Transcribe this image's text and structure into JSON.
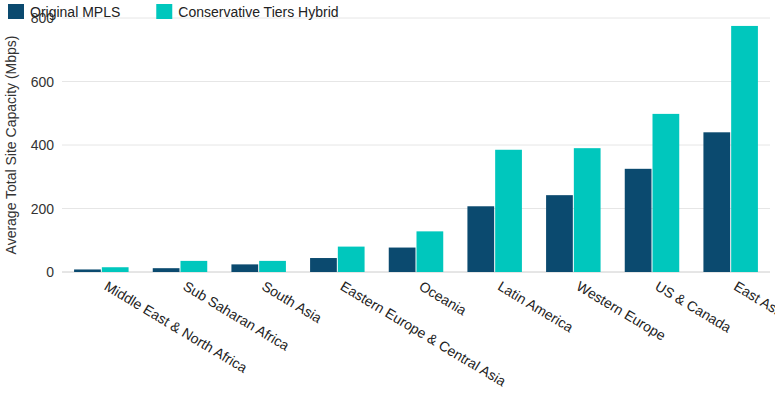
{
  "chart_data": {
    "type": "bar",
    "y_label": "Average Total Site Capacity (Mbps)",
    "categories": [
      "Middle East & North Africa",
      "Sub Saharan Africa",
      "South Asia",
      "Eastern Europe & Central Asia",
      "Oceania",
      "Latin America",
      "Western Europe",
      "US & Canada",
      "East Asia"
    ],
    "series": [
      {
        "name": "Original MPLS",
        "color": "#0b4a6f",
        "values": [
          8,
          12,
          24,
          44,
          77,
          207,
          242,
          325,
          440
        ]
      },
      {
        "name": "Conservative Tiers Hybrid",
        "color": "#00c7bd",
        "values": [
          15,
          35,
          35,
          80,
          128,
          385,
          390,
          498,
          775
        ]
      }
    ],
    "ylim": [
      0,
      800
    ],
    "yticks": [
      0,
      200,
      400,
      600,
      800
    ],
    "grid": true,
    "legend": "top-left"
  }
}
